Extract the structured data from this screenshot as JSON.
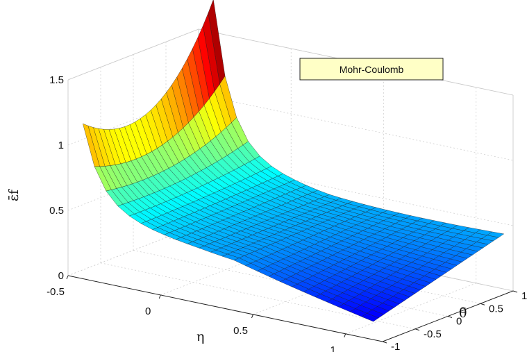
{
  "chart_data": {
    "type": "surface",
    "legend_text": "Mohr-Coulomb",
    "legend_position": "top-right",
    "grid": true,
    "colormap": "jet",
    "x_axis": {
      "label": "η",
      "range": [
        -0.5,
        1.2
      ],
      "ticks": [
        -0.5,
        0,
        0.5,
        1
      ],
      "tick_labels": [
        "-0.5",
        "0",
        "0.5",
        "1"
      ]
    },
    "y_axis": {
      "label": "θ̄",
      "range": [
        -1,
        1
      ],
      "ticks": [
        -1,
        -0.5,
        0,
        0.5,
        1
      ],
      "tick_labels": [
        "-1",
        "-0.5",
        "0",
        "0.5",
        "1"
      ]
    },
    "z_axis": {
      "label": "ε̄f",
      "range": [
        0,
        1.5
      ],
      "ticks": [
        0,
        0.5,
        1,
        1.5
      ],
      "tick_labels": [
        "0",
        "0.5",
        "1",
        "1.5"
      ]
    },
    "grid_resolution": {
      "eta": 25,
      "theta": 25
    },
    "sample_points": [
      {
        "eta": -0.4,
        "theta": -1,
        "ef": 1.0
      },
      {
        "eta": -0.4,
        "theta": 1,
        "ef": 1.45
      },
      {
        "eta": -0.1,
        "theta": 0,
        "ef": 0.55
      },
      {
        "eta": 0.4,
        "theta": 0,
        "ef": 0.35
      },
      {
        "eta": 1.15,
        "theta": -1,
        "ef": 0.25
      },
      {
        "eta": 1.15,
        "theta": 1,
        "ef": 0.55
      }
    ]
  }
}
